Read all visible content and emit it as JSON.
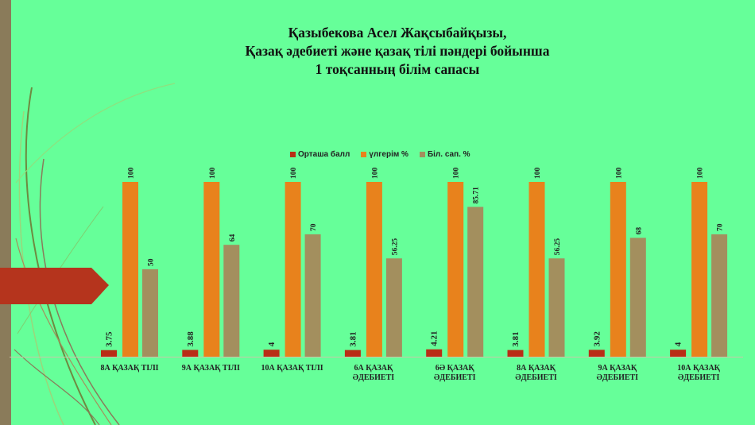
{
  "title": {
    "line1": "Қазыбекова Асел Жақсыбайқызы,",
    "line2": "Қазақ әдебиеті және қазақ тілі пәндері бойынша",
    "line3": "1 тоқсанның білім сапасы"
  },
  "colors": {
    "background": "#66ff99",
    "arrow": "#b5341d",
    "strip": "#8a7b5a",
    "series": [
      "#b92d16",
      "#e8821c",
      "#a38f5e"
    ]
  },
  "chart_data": {
    "type": "bar",
    "categories": [
      [
        "8А ҚАЗАҚ ТІЛІ"
      ],
      [
        "9А ҚАЗАҚ ТІЛІ"
      ],
      [
        "10А ҚАЗАҚ ТІЛІ"
      ],
      [
        "6А  ҚАЗАҚ",
        "ӘДЕБИЕТІ"
      ],
      [
        "6Ә  ҚАЗАҚ",
        "ӘДЕБИЕТІ"
      ],
      [
        "8А  ҚАЗАҚ",
        "ӘДЕБИЕТІ"
      ],
      [
        "9А ҚАЗАҚ",
        "ӘДЕБИЕТІ"
      ],
      [
        "10А ҚАЗАҚ",
        "ӘДЕБИЕТІ"
      ]
    ],
    "series": [
      {
        "name": "Орташа балл",
        "values": [
          3.75,
          3.88,
          4,
          3.81,
          4.21,
          3.81,
          3.92,
          4
        ],
        "labels": [
          "3.75",
          "3.88",
          "4",
          "3.81",
          "4.21",
          "3.81",
          "3.92",
          "4"
        ]
      },
      {
        "name": "үлгерім %",
        "values": [
          100,
          100,
          100,
          100,
          100,
          100,
          100,
          100
        ],
        "labels": [
          "100",
          "100",
          "100",
          "100",
          "100",
          "100",
          "100",
          "100"
        ]
      },
      {
        "name": "Біл. сап. %",
        "values": [
          50,
          64,
          70,
          56.25,
          85.71,
          56.25,
          68,
          70
        ],
        "labels": [
          "50",
          "64",
          "70",
          "56.25",
          "85.71",
          "56.25",
          "68",
          "70"
        ]
      }
    ],
    "ylim": [
      0,
      100
    ],
    "grid": false,
    "legend_position": "top"
  }
}
